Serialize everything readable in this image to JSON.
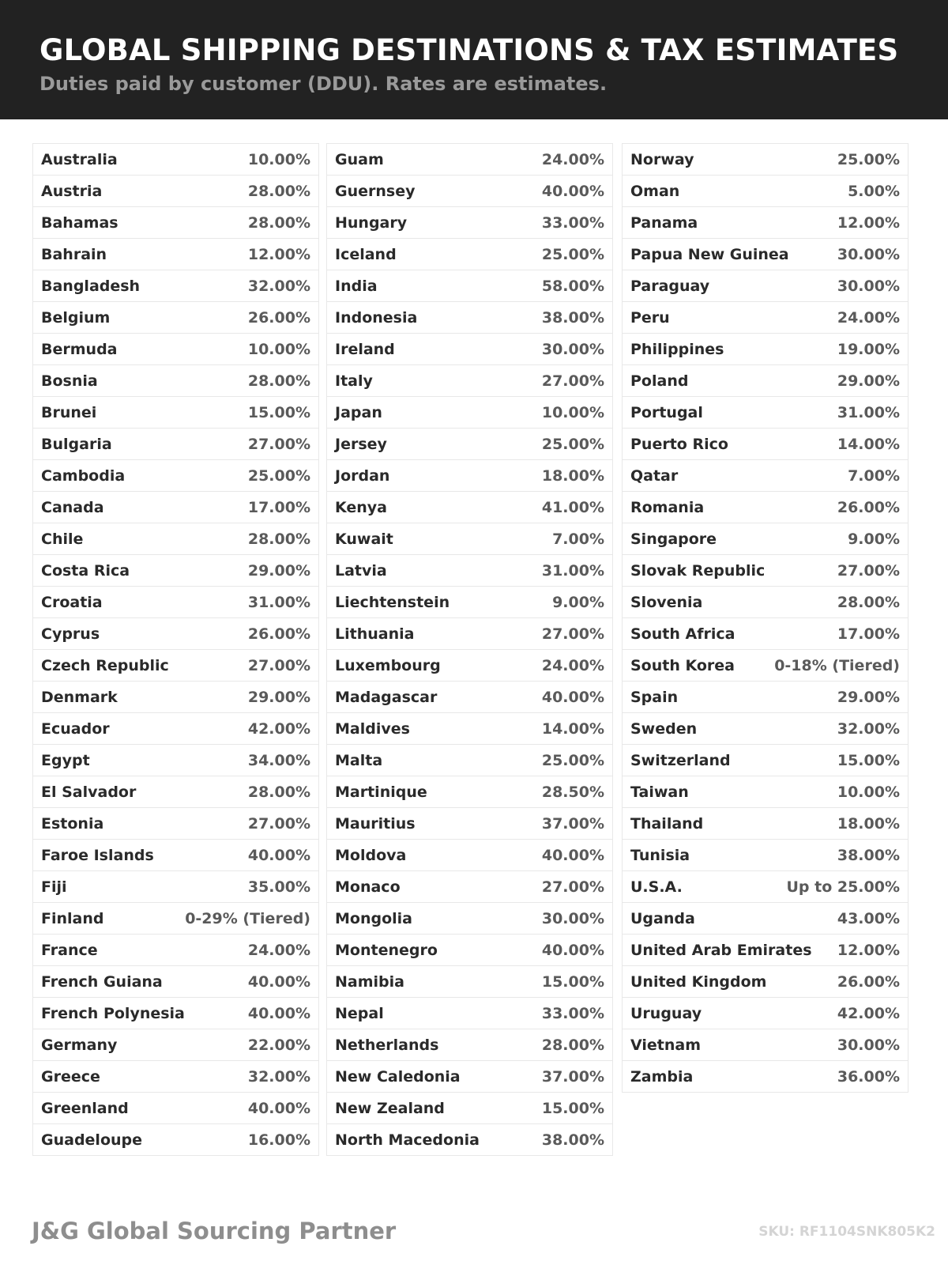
{
  "header": {
    "title": "GLOBAL SHIPPING DESTINATIONS & TAX ESTIMATES",
    "subtitle": "Duties paid by customer (DDU). Rates are estimates."
  },
  "columns": [
    [
      [
        "Australia",
        "10.00%"
      ],
      [
        "Austria",
        "28.00%"
      ],
      [
        "Bahamas",
        "28.00%"
      ],
      [
        "Bahrain",
        "12.00%"
      ],
      [
        "Bangladesh",
        "32.00%"
      ],
      [
        "Belgium",
        "26.00%"
      ],
      [
        "Bermuda",
        "10.00%"
      ],
      [
        "Bosnia",
        "28.00%"
      ],
      [
        "Brunei",
        "15.00%"
      ],
      [
        "Bulgaria",
        "27.00%"
      ],
      [
        "Cambodia",
        "25.00%"
      ],
      [
        "Canada",
        "17.00%"
      ],
      [
        "Chile",
        "28.00%"
      ],
      [
        "Costa Rica",
        "29.00%"
      ],
      [
        "Croatia",
        "31.00%"
      ],
      [
        "Cyprus",
        "26.00%"
      ],
      [
        "Czech Republic",
        "27.00%"
      ],
      [
        "Denmark",
        "29.00%"
      ],
      [
        "Ecuador",
        "42.00%"
      ],
      [
        "Egypt",
        "34.00%"
      ],
      [
        "El Salvador",
        "28.00%"
      ],
      [
        "Estonia",
        "27.00%"
      ],
      [
        "Faroe Islands",
        "40.00%"
      ],
      [
        "Fiji",
        "35.00%"
      ],
      [
        "Finland",
        "0-29% (Tiered)"
      ],
      [
        "France",
        "24.00%"
      ],
      [
        "French Guiana",
        "40.00%"
      ],
      [
        "French Polynesia",
        "40.00%"
      ],
      [
        "Germany",
        "22.00%"
      ],
      [
        "Greece",
        "32.00%"
      ],
      [
        "Greenland",
        "40.00%"
      ],
      [
        "Guadeloupe",
        "16.00%"
      ]
    ],
    [
      [
        "Guam",
        "24.00%"
      ],
      [
        "Guernsey",
        "40.00%"
      ],
      [
        "Hungary",
        "33.00%"
      ],
      [
        "Iceland",
        "25.00%"
      ],
      [
        "India",
        "58.00%"
      ],
      [
        "Indonesia",
        "38.00%"
      ],
      [
        "Ireland",
        "30.00%"
      ],
      [
        "Italy",
        "27.00%"
      ],
      [
        "Japan",
        "10.00%"
      ],
      [
        "Jersey",
        "25.00%"
      ],
      [
        "Jordan",
        "18.00%"
      ],
      [
        "Kenya",
        "41.00%"
      ],
      [
        "Kuwait",
        "7.00%"
      ],
      [
        "Latvia",
        "31.00%"
      ],
      [
        "Liechtenstein",
        "9.00%"
      ],
      [
        "Lithuania",
        "27.00%"
      ],
      [
        "Luxembourg",
        "24.00%"
      ],
      [
        "Madagascar",
        "40.00%"
      ],
      [
        "Maldives",
        "14.00%"
      ],
      [
        "Malta",
        "25.00%"
      ],
      [
        "Martinique",
        "28.50%"
      ],
      [
        "Mauritius",
        "37.00%"
      ],
      [
        "Moldova",
        "40.00%"
      ],
      [
        "Monaco",
        "27.00%"
      ],
      [
        "Mongolia",
        "30.00%"
      ],
      [
        "Montenegro",
        "40.00%"
      ],
      [
        "Namibia",
        "15.00%"
      ],
      [
        "Nepal",
        "33.00%"
      ],
      [
        "Netherlands",
        "28.00%"
      ],
      [
        "New Caledonia",
        "37.00%"
      ],
      [
        "New Zealand",
        "15.00%"
      ],
      [
        "North Macedonia",
        "38.00%"
      ]
    ],
    [
      [
        "Norway",
        "25.00%"
      ],
      [
        "Oman",
        "5.00%"
      ],
      [
        "Panama",
        "12.00%"
      ],
      [
        "Papua New Guinea",
        "30.00%"
      ],
      [
        "Paraguay",
        "30.00%"
      ],
      [
        "Peru",
        "24.00%"
      ],
      [
        "Philippines",
        "19.00%"
      ],
      [
        "Poland",
        "29.00%"
      ],
      [
        "Portugal",
        "31.00%"
      ],
      [
        "Puerto Rico",
        "14.00%"
      ],
      [
        "Qatar",
        "7.00%"
      ],
      [
        "Romania",
        "26.00%"
      ],
      [
        "Singapore",
        "9.00%"
      ],
      [
        "Slovak Republic",
        "27.00%"
      ],
      [
        "Slovenia",
        "28.00%"
      ],
      [
        "South Africa",
        "17.00%"
      ],
      [
        "South Korea",
        "0-18% (Tiered)"
      ],
      [
        "Spain",
        "29.00%"
      ],
      [
        "Sweden",
        "32.00%"
      ],
      [
        "Switzerland",
        "15.00%"
      ],
      [
        "Taiwan",
        "10.00%"
      ],
      [
        "Thailand",
        "18.00%"
      ],
      [
        "Tunisia",
        "38.00%"
      ],
      [
        "U.S.A.",
        "Up to 25.00%"
      ],
      [
        "Uganda",
        "43.00%"
      ],
      [
        "United Arab Emirates",
        "12.00%"
      ],
      [
        "United Kingdom",
        "26.00%"
      ],
      [
        "Uruguay",
        "42.00%"
      ],
      [
        "Vietnam",
        "30.00%"
      ],
      [
        "Zambia",
        "36.00%"
      ]
    ]
  ],
  "footer": {
    "brand": "J&G Global Sourcing Partner",
    "sku": "SKU: RF1104SNK805K2"
  }
}
